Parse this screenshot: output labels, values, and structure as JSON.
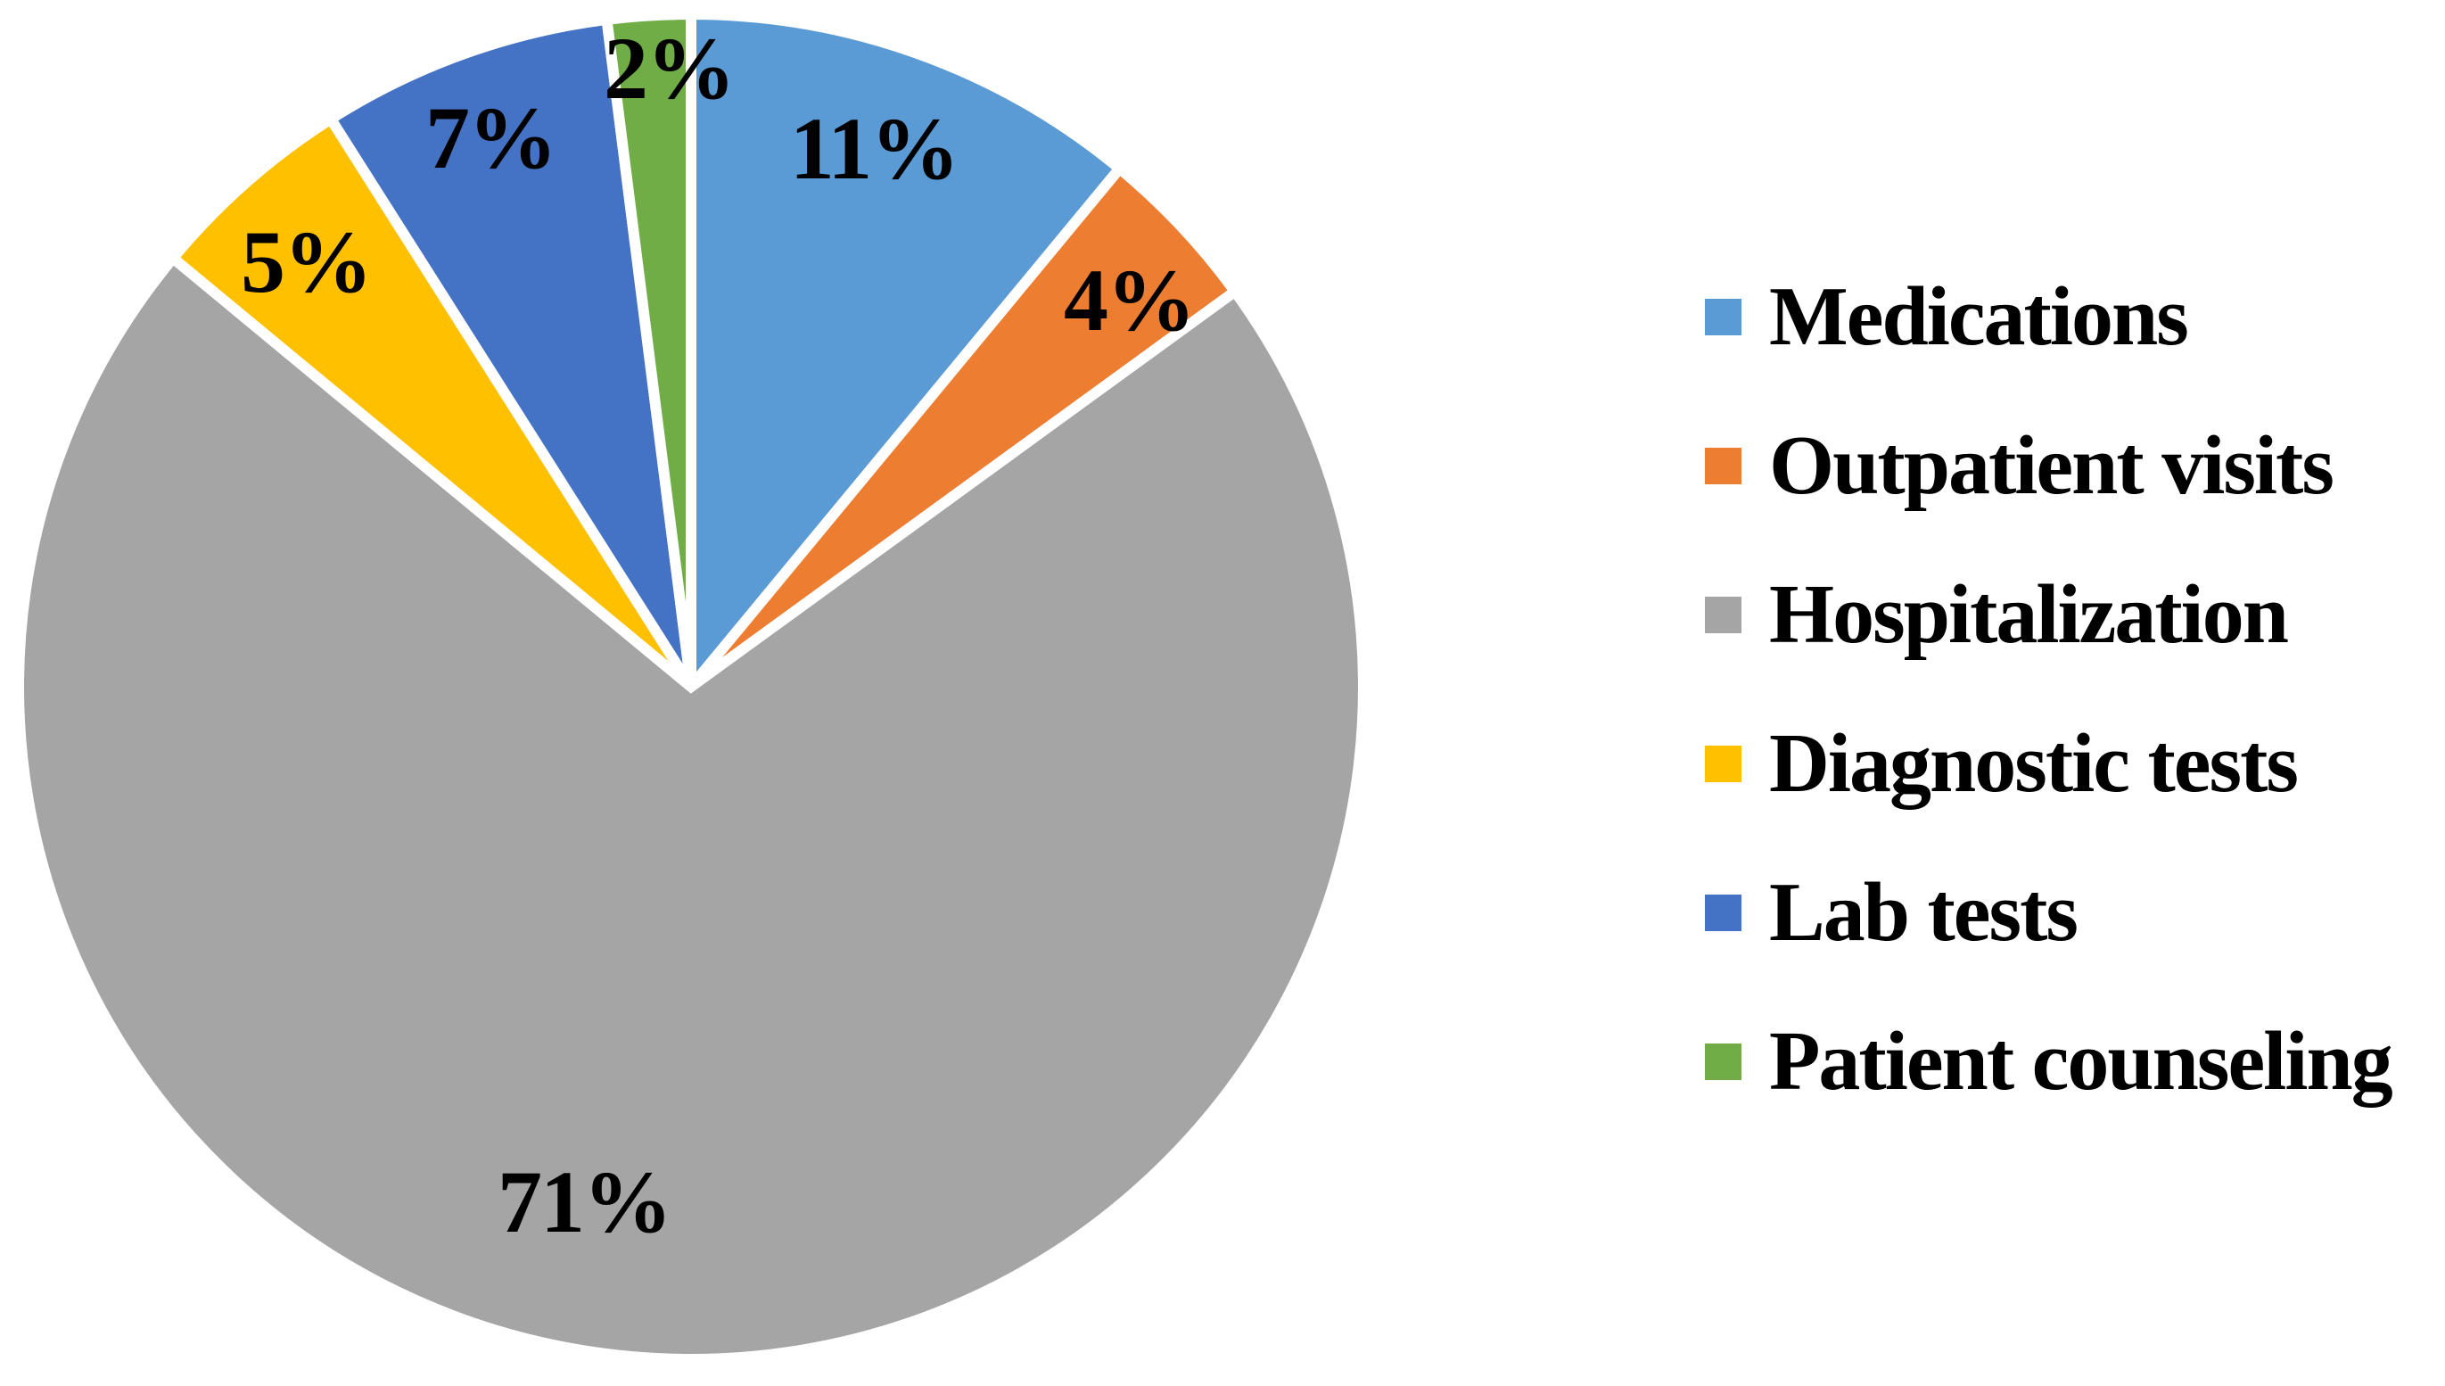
{
  "chart_data": {
    "type": "pie",
    "title": "",
    "categories": [
      "Medications",
      "Outpatient visits",
      "Hospitalization",
      "Diagnostic tests",
      "Lab tests",
      "Patient counseling"
    ],
    "values": [
      11,
      4,
      71,
      5,
      7,
      2
    ],
    "labels": [
      "11%",
      "4%",
      "71%",
      "5%",
      "7%",
      "2%"
    ],
    "colors": [
      "#5B9BD5",
      "#ED7D31",
      "#A5A5A5",
      "#FFC000",
      "#4472C4",
      "#70AD47"
    ],
    "slice_border_color": "#FFFFFF",
    "label_color": "#000000",
    "background": "#FFFFFF",
    "legend_position": "right",
    "start_angle_deg": 0,
    "direction": "clockwise",
    "legend": [
      {
        "label": "Medications",
        "color": "#5B9BD5"
      },
      {
        "label": "Outpatient visits",
        "color": "#ED7D31"
      },
      {
        "label": "Hospitalization",
        "color": "#A5A5A5"
      },
      {
        "label": "Diagnostic tests",
        "color": "#FFC000"
      },
      {
        "label": "Lab tests",
        "color": "#4472C4"
      },
      {
        "label": "Patient counseling",
        "color": "#70AD47"
      }
    ]
  }
}
